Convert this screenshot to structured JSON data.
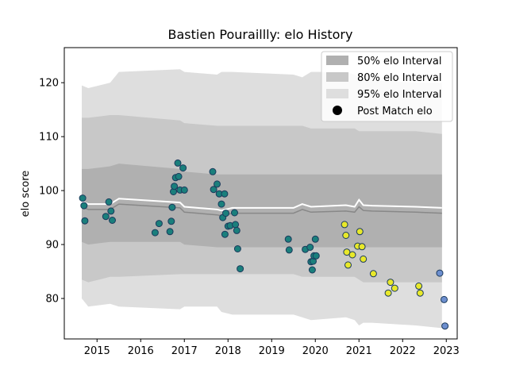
{
  "chart_data": {
    "type": "scatter",
    "title": "Bastien Pouraillly: elo History",
    "xlabel": "",
    "ylabel": "elo score",
    "xlim": [
      2014.25,
      2023.25
    ],
    "ylim": [
      72.5,
      126.5
    ],
    "x_ticks": [
      2015,
      2016,
      2017,
      2018,
      2019,
      2020,
      2021,
      2022,
      2023
    ],
    "y_ticks": [
      80,
      90,
      100,
      110,
      120
    ],
    "legend_position": "top-right",
    "legend": [
      {
        "label": "50% elo Interval",
        "kind": "band",
        "color": "#b0b0b0"
      },
      {
        "label": "80% elo Interval",
        "kind": "band",
        "color": "#c8c8c8"
      },
      {
        "label": "95% elo Interval",
        "kind": "band",
        "color": "#dedede"
      },
      {
        "label": "Post Match elo",
        "kind": "marker",
        "color": "#000000"
      }
    ],
    "colors": {
      "band50": "#b0b0b0",
      "band80": "#c8c8c8",
      "band95": "#dedede",
      "mean_line": "#888888",
      "white_line": "#ffffff",
      "teal": "#1a7f7c",
      "yellow": "#e8e82a",
      "blue": "#6d8fcf",
      "marker_edge": "#1b3a5c"
    },
    "bands": {
      "x": [
        2014.65,
        2014.8,
        2015.3,
        2015.5,
        2016.9,
        2017.0,
        2017.75,
        2017.85,
        2018.1,
        2019.5,
        2019.7,
        2019.9,
        2020.7,
        2020.9,
        2021.0,
        2021.1,
        2021.3,
        2022.3,
        2022.9
      ],
      "p95_low": [
        80.0,
        78.5,
        79.0,
        78.5,
        78.0,
        78.5,
        78.5,
        77.5,
        77.0,
        77.0,
        76.5,
        76.0,
        76.5,
        76.0,
        75.0,
        75.5,
        75.5,
        75.0,
        74.5
      ],
      "p95_high": [
        119.5,
        119.0,
        120.0,
        122.0,
        122.5,
        122.0,
        121.5,
        122.0,
        122.0,
        121.5,
        121.0,
        122.0,
        122.0,
        121.5,
        121.0,
        121.0,
        120.5,
        120.0,
        120.0
      ],
      "p80_low": [
        83.5,
        83.0,
        84.0,
        84.0,
        84.5,
        84.5,
        84.5,
        84.5,
        84.5,
        84.5,
        84.0,
        84.0,
        84.0,
        84.0,
        83.5,
        83.0,
        83.0,
        83.0,
        83.0
      ],
      "p80_high": [
        113.5,
        113.5,
        114.0,
        114.0,
        113.0,
        112.5,
        112.0,
        112.0,
        112.0,
        112.0,
        112.0,
        111.5,
        111.5,
        111.5,
        111.0,
        111.0,
        111.0,
        111.0,
        110.5
      ],
      "p50_low": [
        90.5,
        90.0,
        90.5,
        90.5,
        90.5,
        90.0,
        89.5,
        89.5,
        89.5,
        89.5,
        89.5,
        89.5,
        89.5,
        89.5,
        89.5,
        89.5,
        89.5,
        89.5,
        89.5
      ],
      "p50_high": [
        104.0,
        104.0,
        104.5,
        105.0,
        104.0,
        103.5,
        103.0,
        103.0,
        103.0,
        103.0,
        103.0,
        103.0,
        103.0,
        103.0,
        103.0,
        103.0,
        103.0,
        103.0,
        103.0
      ],
      "mean": [
        97.0,
        96.5,
        96.5,
        97.5,
        96.8,
        96.0,
        95.5,
        95.3,
        95.8,
        95.8,
        96.5,
        96.0,
        96.2,
        96.0,
        97.0,
        96.3,
        96.2,
        96.0,
        95.8
      ],
      "white": [
        98.0,
        97.5,
        97.5,
        98.5,
        97.8,
        97.0,
        96.5,
        96.3,
        96.8,
        96.8,
        97.5,
        97.0,
        97.3,
        97.0,
        98.3,
        97.3,
        97.2,
        97.0,
        96.8
      ]
    },
    "series": [
      {
        "group": "teal",
        "x": [
          2014.67,
          2014.7,
          2014.72,
          2015.2,
          2015.27,
          2015.32,
          2015.35,
          2016.33,
          2016.42,
          2016.67,
          2016.7,
          2016.72,
          2016.75,
          2016.77,
          2016.8,
          2016.85,
          2016.87,
          2016.9,
          2016.97,
          2017.0,
          2017.65,
          2017.67,
          2017.75,
          2017.8,
          2017.85,
          2017.88,
          2017.92,
          2017.93,
          2017.95,
          2018.0,
          2018.05,
          2018.15,
          2018.17,
          2018.2,
          2018.22,
          2018.28,
          2019.38,
          2019.4,
          2019.77,
          2019.88,
          2019.9,
          2019.93,
          2019.95,
          2019.97,
          2020.0,
          2020.02
        ],
        "y": [
          98.6,
          97.2,
          94.4,
          95.2,
          97.9,
          96.2,
          94.5,
          92.2,
          93.9,
          92.4,
          94.3,
          96.9,
          99.8,
          100.8,
          102.4,
          105.1,
          102.6,
          100.1,
          104.2,
          100.1,
          103.5,
          100.2,
          101.2,
          99.4,
          97.5,
          95.0,
          99.4,
          91.9,
          95.8,
          93.4,
          93.5,
          95.9,
          93.7,
          92.6,
          89.2,
          85.5,
          91.0,
          89.0,
          89.1,
          89.5,
          86.8,
          85.3,
          86.9,
          87.9,
          91.0,
          87.9
        ]
      },
      {
        "group": "yellow",
        "x": [
          2020.67,
          2020.7,
          2020.72,
          2020.75,
          2020.85,
          2020.97,
          2021.02,
          2021.07,
          2021.1,
          2021.33,
          2021.67,
          2021.72,
          2021.82,
          2022.37,
          2022.4
        ],
        "y": [
          93.7,
          91.7,
          88.6,
          86.2,
          88.1,
          89.7,
          92.4,
          89.6,
          87.3,
          84.6,
          81.0,
          83.0,
          81.9,
          82.3,
          81.0
        ]
      },
      {
        "group": "blue",
        "x": [
          2022.85,
          2022.95,
          2022.97
        ],
        "y": [
          84.7,
          79.8,
          74.9
        ]
      }
    ]
  }
}
